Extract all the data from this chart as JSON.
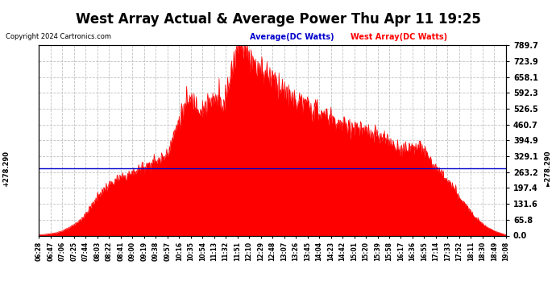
{
  "title": "West Array Actual & Average Power Thu Apr 11 19:25",
  "copyright": "Copyright 2024 Cartronics.com",
  "legend_avg": "Average(DC Watts)",
  "legend_west": "West Array(DC Watts)",
  "avg_line_value": 278.29,
  "yticks": [
    0.0,
    65.8,
    131.6,
    197.4,
    263.2,
    329.1,
    394.9,
    460.7,
    526.5,
    592.3,
    658.1,
    723.9,
    789.7
  ],
  "ymax": 789.7,
  "ymin": 0.0,
  "background_color": "#ffffff",
  "fill_color": "#ff0000",
  "line_color": "#ff0000",
  "avg_line_color": "#0000cc",
  "grid_color": "#bbbbbb",
  "title_fontsize": 12,
  "x_times": [
    "06:28",
    "06:47",
    "07:06",
    "07:25",
    "07:44",
    "08:03",
    "08:22",
    "08:41",
    "09:00",
    "09:19",
    "09:38",
    "09:57",
    "10:16",
    "10:35",
    "10:54",
    "11:13",
    "11:32",
    "11:51",
    "12:10",
    "12:29",
    "12:48",
    "13:07",
    "13:26",
    "13:45",
    "14:04",
    "14:23",
    "14:42",
    "15:01",
    "15:20",
    "15:39",
    "15:58",
    "16:17",
    "16:36",
    "16:55",
    "17:14",
    "17:33",
    "17:52",
    "18:11",
    "18:30",
    "18:49",
    "19:08"
  ],
  "west_values": [
    3,
    8,
    20,
    45,
    90,
    160,
    210,
    240,
    260,
    290,
    310,
    350,
    480,
    560,
    530,
    560,
    570,
    790,
    750,
    690,
    660,
    600,
    560,
    540,
    510,
    490,
    460,
    450,
    430,
    410,
    390,
    360,
    370,
    350,
    280,
    230,
    160,
    100,
    50,
    20,
    3
  ]
}
